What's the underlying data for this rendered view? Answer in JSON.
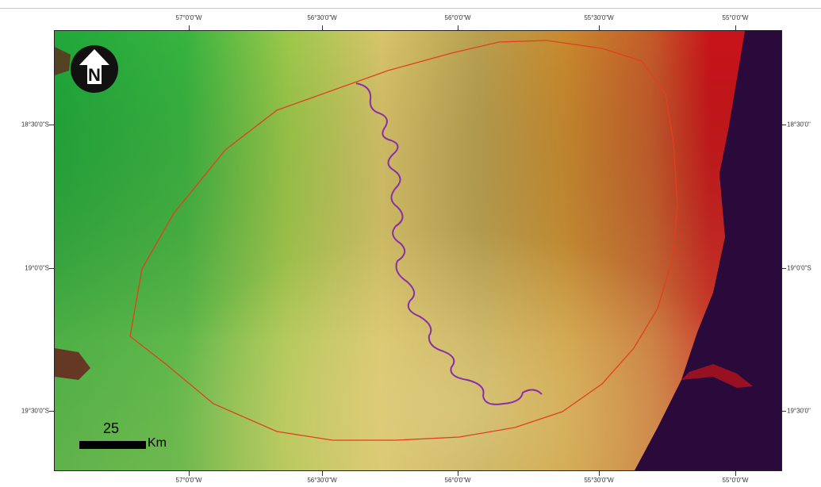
{
  "map": {
    "longitude_labels": [
      "57°0'0\"W",
      "56°30'0\"W",
      "56°0'0\"W",
      "55°30'0\"W",
      "55°0'0\"W"
    ],
    "latitude_labels_left": [
      "18°30'0\"S",
      "19°0'0\"S",
      "19°30'0\"S"
    ],
    "latitude_labels_right": [
      "18°30'0\"",
      "19°0'0\"S",
      "19°30'0\""
    ],
    "scale_bar": {
      "distance": "25",
      "unit": "Km"
    },
    "north_arrow": {
      "icon": "north-arrow-icon",
      "letter": "N"
    },
    "colors": {
      "low": "#1fa83a",
      "mid_low": "#9cc94a",
      "mid": "#d8c46a",
      "mid_high": "#c98a2e",
      "high": "#c8141a",
      "deep": "#2a0a3a",
      "boundary": "#e0401e",
      "river": "#8a2ea8"
    }
  }
}
